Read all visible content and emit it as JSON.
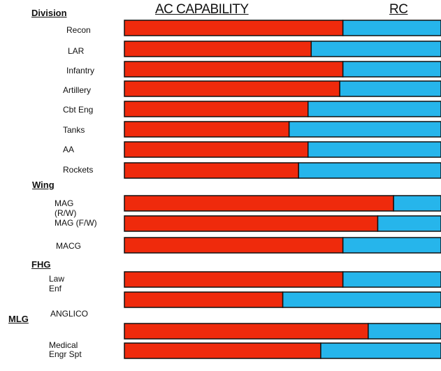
{
  "chart_data": {
    "type": "bar",
    "orientation": "horizontal",
    "stacked": true,
    "percent_stacked": true,
    "headers": {
      "ac": "AC CAPABILITY",
      "rc": "RC"
    },
    "series": [
      {
        "name": "AC CAPABILITY",
        "color": "#ef2a0c"
      },
      {
        "name": "RC",
        "color": "#26b5eb"
      }
    ],
    "groups": [
      {
        "label": "Division",
        "rows": [
          {
            "label": "Recon",
            "ac": 69
          },
          {
            "label": "LAR",
            "ac": 59
          },
          {
            "label": "Infantry",
            "ac": 69
          },
          {
            "label": "Artillery",
            "ac": 68
          },
          {
            "label": "Cbt Eng",
            "ac": 58
          },
          {
            "label": "Tanks",
            "ac": 52
          },
          {
            "label": "AA",
            "ac": 58
          },
          {
            "label": "Rockets",
            "ac": 55
          }
        ]
      },
      {
        "label": "Wing",
        "rows": [
          {
            "label": "MAG (R/W)",
            "ac": 85
          },
          {
            "label": "MAG (F/W)",
            "ac": 80
          },
          {
            "label": "MACG",
            "ac": 69
          }
        ]
      },
      {
        "label": "FHG",
        "rows": [
          {
            "label": "Law Enf",
            "ac": 69
          },
          {
            "label": "ANGLICO",
            "ac": 50
          }
        ]
      },
      {
        "label": "MLG",
        "rows": [
          {
            "label": "",
            "ac": 77
          },
          {
            "label": "Medical Engr Spt",
            "ac": 62
          }
        ]
      }
    ],
    "grid": false,
    "legend": "none"
  }
}
